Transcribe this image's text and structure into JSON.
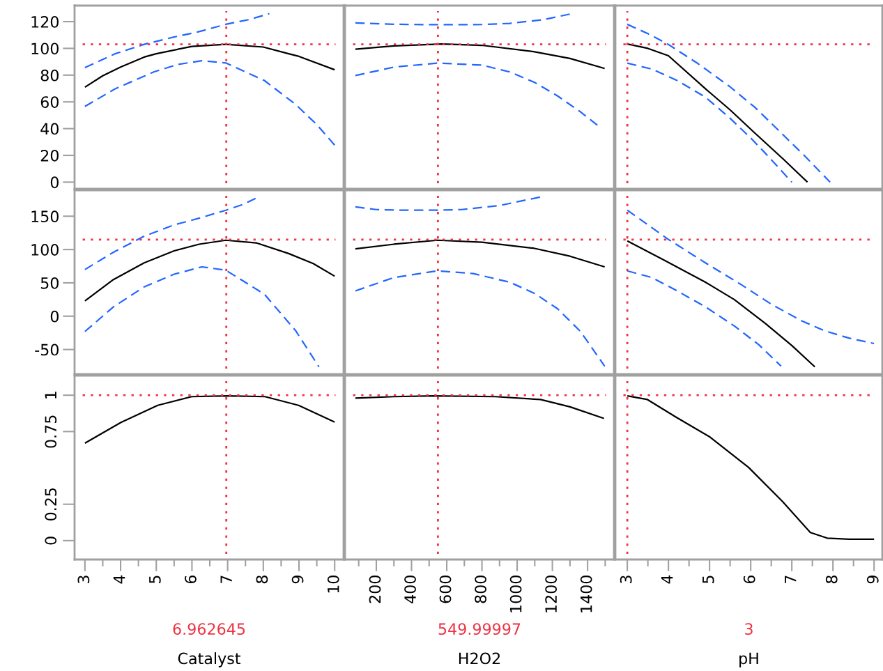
{
  "chart_data": [
    {
      "type": "line",
      "tick_labels": "y",
      "xlim": [
        2.71,
        10.25
      ],
      "ylim": [
        -5,
        132
      ],
      "yticks": [
        0,
        20,
        40,
        60,
        80,
        100,
        120
      ],
      "series": [
        {
          "color": "#000000",
          "line_style": "solid",
          "x": [
            3,
            3.5,
            4,
            4.66,
            5,
            6,
            6.95,
            8,
            8.71,
            9,
            10
          ],
          "values": [
            71,
            79.5,
            86,
            93.5,
            96,
            101.5,
            103,
            101,
            96,
            94,
            84
          ]
        },
        {
          "color": "#2266ff",
          "line_style": "dashed",
          "x": [
            3,
            3.85,
            4.66,
            5.5,
            6.2,
            6.95,
            7.6,
            8.17
          ],
          "values": [
            85.6,
            96,
            103,
            108.5,
            112.5,
            118,
            121.5,
            126
          ]
        },
        {
          "color": "#2266ff",
          "line_style": "dashed",
          "x": [
            3,
            3.85,
            4.93,
            5.6,
            6.28,
            6.95,
            8.03,
            8.91,
            9.5,
            10
          ],
          "values": [
            56.6,
            69.8,
            82.4,
            88,
            90.8,
            89.1,
            76,
            58,
            43,
            27.7
          ]
        }
      ],
      "ref_lines": [
        {
          "axis": "x",
          "value": 6.962645,
          "color": "#ee3344",
          "line_style": "dotted"
        },
        {
          "axis": "y",
          "value": 103,
          "color": "#ee3344",
          "line_style": "dotted"
        }
      ]
    },
    {
      "type": "line",
      "tick_labels": false,
      "xlim": [
        22,
        1550
      ],
      "ylim": [
        -5,
        132
      ],
      "series": [
        {
          "color": "#000000",
          "line_style": "solid",
          "x": [
            81,
            300,
            575,
            800,
            1094,
            1300,
            1497
          ],
          "values": [
            99.4,
            101.8,
            103.3,
            102.3,
            97.6,
            92.5,
            85
          ]
        },
        {
          "color": "#2266ff",
          "line_style": "dashed",
          "x": [
            81,
            300,
            548,
            800,
            958,
            1150,
            1313
          ],
          "values": [
            119,
            118,
            117.7,
            117.8,
            118.7,
            121.5,
            126
          ]
        },
        {
          "color": "#2266ff",
          "line_style": "dashed",
          "x": [
            81,
            300,
            548,
            800,
            958,
            1100,
            1230,
            1360,
            1477
          ],
          "values": [
            79.7,
            86,
            89,
            87.5,
            82.4,
            74.5,
            64.4,
            52.5,
            40.3
          ]
        }
      ],
      "ref_lines": [
        {
          "axis": "x",
          "value": 549.99997,
          "color": "#ee3344",
          "line_style": "dotted"
        },
        {
          "axis": "y",
          "value": 103,
          "color": "#ee3344",
          "line_style": "dotted"
        }
      ]
    },
    {
      "type": "line",
      "tick_labels": false,
      "xlim": [
        2.71,
        9.2
      ],
      "ylim": [
        -5,
        132
      ],
      "series": [
        {
          "color": "#000000",
          "line_style": "solid",
          "x": [
            3,
            3.5,
            4.0,
            4.9,
            5.5,
            6.07,
            6.8,
            7.38
          ],
          "values": [
            103.3,
            100,
            94.5,
            69.8,
            54,
            37.6,
            17,
            0
          ]
        },
        {
          "color": "#2266ff",
          "line_style": "dashed",
          "x": [
            3,
            3.5,
            3.98,
            4.7,
            5.48,
            6.1,
            6.65,
            7.3,
            7.93
          ],
          "values": [
            118,
            111,
            103.3,
            89,
            71.7,
            56,
            39.5,
            20,
            0
          ]
        },
        {
          "color": "#2266ff",
          "line_style": "dashed",
          "x": [
            3,
            3.6,
            4.21,
            4.9,
            5.48,
            6.0,
            6.36,
            7.0
          ],
          "values": [
            89,
            84.5,
            76,
            63.5,
            48.3,
            33,
            21.5,
            0
          ]
        }
      ],
      "ref_lines": [
        {
          "axis": "x",
          "value": 3,
          "color": "#ee3344",
          "line_style": "dotted"
        },
        {
          "axis": "y",
          "value": 103,
          "color": "#ee3344",
          "line_style": "dotted"
        }
      ]
    },
    {
      "type": "line",
      "tick_labels": "y",
      "xlim": [
        2.71,
        10.25
      ],
      "ylim": [
        -87,
        189
      ],
      "yticks": [
        -50,
        0,
        50,
        100,
        150
      ],
      "series": [
        {
          "color": "#000000",
          "line_style": "solid",
          "x": [
            3,
            3.8,
            4.66,
            5.5,
            6.2,
            6.95,
            7.8,
            8.71,
            9.4,
            10
          ],
          "values": [
            23,
            55,
            80,
            98,
            108,
            114,
            110,
            94,
            79,
            60
          ]
        },
        {
          "color": "#2266ff",
          "line_style": "dashed",
          "x": [
            3,
            3.8,
            4.66,
            5.5,
            6.2,
            6.95,
            7.45,
            7.87
          ],
          "values": [
            70,
            96,
            120,
            137,
            147,
            159,
            168,
            179
          ]
        },
        {
          "color": "#2266ff",
          "line_style": "dashed",
          "x": [
            3,
            3.8,
            4.66,
            5.5,
            6.28,
            6.95,
            8.03,
            8.91,
            9.56
          ],
          "values": [
            -23,
            14,
            44,
            63,
            74,
            69,
            33,
            -22,
            -76
          ]
        }
      ],
      "ref_lines": [
        {
          "axis": "x",
          "value": 6.962645,
          "color": "#ee3344",
          "line_style": "dotted"
        },
        {
          "axis": "y",
          "value": 115,
          "color": "#ee3344",
          "line_style": "dotted"
        }
      ]
    },
    {
      "type": "line",
      "tick_labels": false,
      "xlim": [
        22,
        1550
      ],
      "ylim": [
        -87,
        189
      ],
      "series": [
        {
          "color": "#000000",
          "line_style": "solid",
          "x": [
            81,
            300,
            548,
            800,
            1094,
            1300,
            1497
          ],
          "values": [
            101,
            108,
            114,
            111,
            102,
            90,
            74
          ]
        },
        {
          "color": "#2266ff",
          "line_style": "dashed",
          "x": [
            81,
            200,
            357,
            550,
            685,
            900,
            1135
          ],
          "values": [
            164,
            160,
            159,
            159,
            160,
            166,
            179
          ]
        },
        {
          "color": "#2266ff",
          "line_style": "dashed",
          "x": [
            81,
            300,
            548,
            750,
            958,
            1100,
            1230,
            1360,
            1497
          ],
          "values": [
            38,
            58,
            68,
            64,
            51,
            34,
            11,
            -23,
            -75
          ]
        }
      ],
      "ref_lines": [
        {
          "axis": "x",
          "value": 549.99997,
          "color": "#ee3344",
          "line_style": "dotted"
        },
        {
          "axis": "y",
          "value": 115,
          "color": "#ee3344",
          "line_style": "dotted"
        }
      ]
    },
    {
      "type": "line",
      "tick_labels": false,
      "xlim": [
        2.71,
        9.2
      ],
      "ylim": [
        -87,
        189
      ],
      "series": [
        {
          "color": "#000000",
          "line_style": "solid",
          "x": [
            3,
            3.9,
            4.9,
            5.6,
            6.36,
            7.0,
            7.56
          ],
          "values": [
            113,
            84,
            51,
            25,
            -11,
            -44,
            -76
          ]
        },
        {
          "color": "#2266ff",
          "line_style": "dashed",
          "x": [
            3,
            3.98,
            4.9,
            5.78,
            6.5,
            7.24,
            7.8,
            8.4,
            9.0
          ],
          "values": [
            159,
            116,
            80,
            47,
            18,
            -7,
            -22,
            -33,
            -41
          ]
        },
        {
          "color": "#2266ff",
          "line_style": "dashed",
          "x": [
            3,
            3.6,
            4.21,
            4.9,
            5.61,
            6.2,
            6.74
          ],
          "values": [
            68,
            58,
            38,
            14,
            -15,
            -43,
            -75
          ]
        }
      ],
      "ref_lines": [
        {
          "axis": "x",
          "value": 3,
          "color": "#ee3344",
          "line_style": "dotted"
        },
        {
          "axis": "y",
          "value": 115,
          "color": "#ee3344",
          "line_style": "dotted"
        }
      ]
    },
    {
      "type": "line",
      "xlabel": "Catalyst",
      "xlim": [
        2.71,
        10.25
      ],
      "ylim": [
        -0.13,
        1.135
      ],
      "xticks": [
        3,
        4,
        5,
        6,
        7,
        8,
        9,
        10,
        {
          "value": 3.5,
          "label": null
        },
        {
          "value": 4.5,
          "label": null
        },
        {
          "value": 5.5,
          "label": null
        },
        {
          "value": 6.5,
          "label": null
        },
        {
          "value": 7.5,
          "label": null
        },
        {
          "value": 8.5,
          "label": null
        },
        {
          "value": 9.5,
          "label": null
        }
      ],
      "yticks": [
        0,
        0.25,
        0.75,
        1
      ],
      "series": [
        {
          "color": "#000000",
          "line_style": "solid",
          "x": [
            3,
            4.01,
            5.04,
            5.99,
            7,
            8.05,
            8.99,
            10
          ],
          "values": [
            0.67,
            0.813,
            0.93,
            0.99,
            0.995,
            0.99,
            0.93,
            0.815
          ]
        }
      ],
      "ref_lines": [
        {
          "axis": "x",
          "value": 6.962645,
          "label": "6.962645",
          "color": "#ee3344",
          "line_style": "dotted"
        },
        {
          "axis": "y",
          "value": 1,
          "color": "#ee3344",
          "line_style": "dotted"
        }
      ]
    },
    {
      "type": "line",
      "tick_labels": "x",
      "xlabel": "H2O2",
      "xlim": [
        22,
        1550
      ],
      "ylim": [
        -0.13,
        1.135
      ],
      "xticks": [
        200,
        400,
        600,
        800,
        1000,
        1200,
        1400,
        {
          "value": 100,
          "label": null
        },
        {
          "value": 300,
          "label": null
        },
        {
          "value": 500,
          "label": null
        },
        {
          "value": 700,
          "label": null
        },
        {
          "value": 900,
          "label": null
        },
        {
          "value": 1100,
          "label": null
        },
        {
          "value": 1300,
          "label": null
        },
        {
          "value": 1500,
          "label": null
        }
      ],
      "series": [
        {
          "color": "#000000",
          "line_style": "solid",
          "x": [
            81,
            300,
            525,
            877,
            1133,
            1300,
            1493
          ],
          "values": [
            0.98,
            0.99,
            0.995,
            0.99,
            0.97,
            0.92,
            0.84
          ]
        }
      ],
      "ref_lines": [
        {
          "axis": "x",
          "value": 549.99997,
          "label": "549.99997",
          "color": "#ee3344",
          "line_style": "dotted"
        },
        {
          "axis": "y",
          "value": 1,
          "color": "#ee3344",
          "line_style": "dotted"
        }
      ]
    },
    {
      "type": "line",
      "tick_labels": "x",
      "xlabel": "pH",
      "xlim": [
        2.71,
        9.2
      ],
      "ylim": [
        -0.13,
        1.135
      ],
      "xticks": [
        3,
        4,
        5,
        6,
        7,
        8,
        9,
        {
          "value": 3.5,
          "label": null
        },
        {
          "value": 4.5,
          "label": null
        },
        {
          "value": 5.5,
          "label": null
        },
        {
          "value": 6.5,
          "label": null
        },
        {
          "value": 7.5,
          "label": null
        },
        {
          "value": 8.5,
          "label": null
        }
      ],
      "series": [
        {
          "color": "#000000",
          "line_style": "solid",
          "x": [
            3,
            3.49,
            4.18,
            4.99,
            5.95,
            6.77,
            7.45,
            7.86,
            8.4,
            9.0
          ],
          "values": [
            0.995,
            0.97,
            0.85,
            0.716,
            0.503,
            0.27,
            0.056,
            0.017,
            0.01,
            0.01
          ]
        }
      ],
      "ref_lines": [
        {
          "axis": "x",
          "value": 3,
          "label": "3",
          "color": "#ee3344",
          "line_style": "dotted"
        },
        {
          "axis": "y",
          "value": 1,
          "color": "#ee3344",
          "line_style": "dotted"
        }
      ]
    }
  ]
}
